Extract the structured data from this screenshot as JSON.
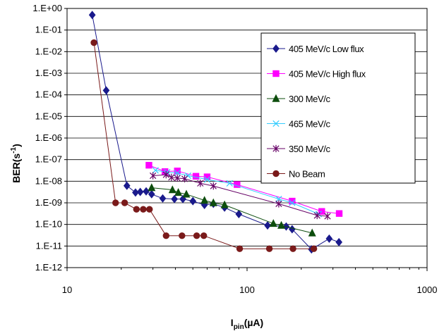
{
  "chart_data": {
    "type": "scatter",
    "title": "",
    "xlabel": {
      "main": "I",
      "sub": "pin",
      "rest": "(µA)"
    },
    "ylabel": {
      "main": "BER(s",
      "sup": "-1",
      "rest": ")"
    },
    "x_scale": "log",
    "y_scale": "log",
    "xlim": [
      10,
      1000
    ],
    "ylim_exp": [
      -12,
      0
    ],
    "x_tick_labels": [
      "10",
      "100",
      "1000"
    ],
    "y_tick_labels": [
      "1.E-12",
      "1.E-11",
      "1.E-10",
      "1.E-09",
      "1.E-08",
      "1.E-07",
      "1.E-06",
      "1.E-05",
      "1.E-04",
      "1.E-03",
      "1.E-02",
      "1.E-01",
      "1.E+00"
    ],
    "grid": "horizontal",
    "legend_position": "right",
    "series": [
      {
        "name": "405 MeV/c Low flux",
        "color": "#1a1a8c",
        "marker": "diamond",
        "x": [
          13.8,
          16.5,
          21.5,
          24,
          25.5,
          27.5,
          29.5,
          34,
          39.5,
          44,
          50,
          58,
          65,
          75,
          90,
          130,
          165,
          178,
          228,
          286,
          324
        ],
        "y": [
          0.5,
          0.00016,
          6.2e-09,
          3e-09,
          3.2e-09,
          3.4e-09,
          2.5e-09,
          1.6e-09,
          1.5e-09,
          1.5e-09,
          1.2e-09,
          8e-10,
          9e-10,
          6e-10,
          3e-10,
          9e-11,
          8e-11,
          6e-11,
          7e-12,
          2.2e-11,
          1.5e-11
        ]
      },
      {
        "name": "405 MeV/c High flux",
        "color": "#ff00ff",
        "marker": "square",
        "x": [
          28.5,
          35,
          41,
          52,
          60,
          88,
          178,
          260,
          325
        ],
        "y": [
          5.5e-08,
          2.8e-08,
          3e-08,
          1.7e-08,
          1.6e-08,
          7e-09,
          1.2e-09,
          4e-10,
          3.2e-10
        ]
      },
      {
        "name": "300 MeV/c",
        "color": "#0d4d0d",
        "marker": "triangle",
        "x": [
          29.5,
          38.5,
          41.5,
          46,
          58,
          65,
          75,
          140,
          155,
          230
        ],
        "y": [
          5e-09,
          4e-09,
          3e-09,
          2.5e-09,
          1.3e-09,
          1e-09,
          8e-10,
          1.1e-10,
          9e-11,
          4e-11
        ]
      },
      {
        "name": "465 MeV/c",
        "color": "#33ccff",
        "marker": "x",
        "x": [
          31,
          36,
          41,
          47,
          60,
          80,
          150,
          178,
          250
        ],
        "y": [
          3.2e-08,
          2.6e-08,
          2.4e-08,
          1.8e-08,
          1.2e-08,
          8e-09,
          1.5e-09,
          1e-09,
          3e-10
        ]
      },
      {
        "name": "350 MeV/c",
        "color": "#660066",
        "marker": "star",
        "x": [
          30,
          35.5,
          38,
          41,
          45,
          55,
          65,
          150,
          245,
          280
        ],
        "y": [
          1.8e-08,
          2e-08,
          1.5e-08,
          1.4e-08,
          1.3e-08,
          8e-09,
          6e-09,
          9e-10,
          2.6e-10,
          2.4e-10
        ]
      },
      {
        "name": "No Beam",
        "color": "#7a1a1a",
        "marker": "circle",
        "x": [
          14.1,
          18.6,
          20.9,
          24.3,
          26.5,
          28.7,
          35.5,
          43.5,
          52.5,
          57.5,
          91,
          133,
          180,
          235
        ],
        "y": [
          0.026,
          1e-09,
          1e-09,
          5e-10,
          5e-10,
          5e-10,
          3e-11,
          3e-11,
          3e-11,
          3e-11,
          7.5e-12,
          7.5e-12,
          7.5e-12,
          7.5e-12
        ]
      }
    ]
  }
}
